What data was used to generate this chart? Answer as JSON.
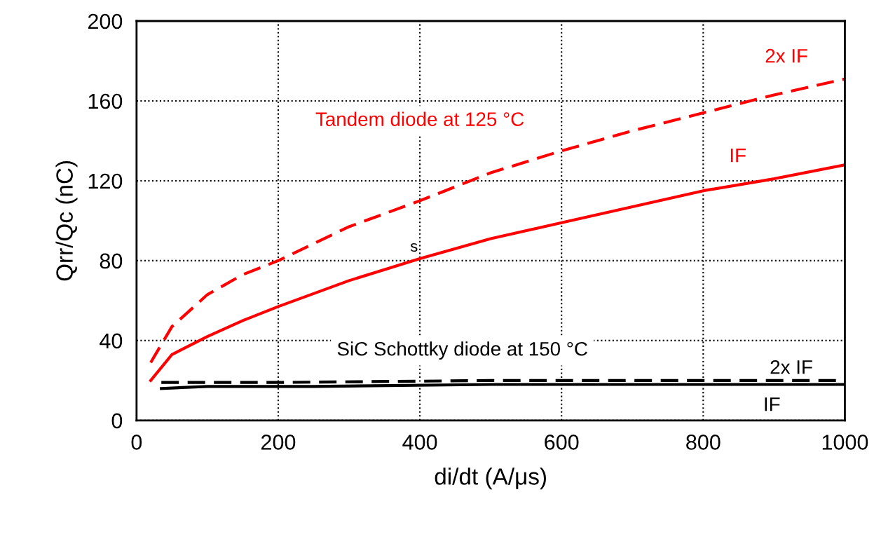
{
  "chart_data": {
    "type": "line",
    "xlabel": "di/dt (A/μs)",
    "ylabel": "Qrr/Qc (nC)",
    "xlim": [
      0,
      1000
    ],
    "xticks": [
      0,
      200,
      400,
      600,
      800,
      1000
    ],
    "ylim": [
      0,
      200
    ],
    "yticks": [
      0,
      40,
      80,
      120,
      160,
      200
    ],
    "grid": true,
    "series": [
      {
        "name": "2x IF",
        "color": "#ff0000",
        "line_style": "dashed",
        "x": [
          20,
          50,
          100,
          150,
          200,
          300,
          400,
          500,
          600,
          700,
          800,
          900,
          1000
        ],
        "values": [
          29,
          47,
          63,
          73,
          80,
          97,
          110,
          124,
          135,
          145,
          154,
          163,
          171
        ]
      },
      {
        "name": "IF",
        "color": "#ff0000",
        "line_style": "solid",
        "x": [
          20,
          50,
          100,
          150,
          200,
          300,
          400,
          500,
          600,
          700,
          800,
          900,
          1000
        ],
        "values": [
          20,
          33,
          42,
          50,
          57,
          70,
          81,
          91,
          99,
          107,
          115,
          121,
          128
        ]
      },
      {
        "name": "2x IF",
        "color": "#000000",
        "line_style": "dashed",
        "x": [
          35,
          200,
          500,
          1000
        ],
        "values": [
          19,
          19,
          20,
          20
        ]
      },
      {
        "name": "IF",
        "color": "#000000",
        "line_style": "solid",
        "x": [
          35,
          100,
          250,
          500,
          1000
        ],
        "values": [
          16,
          17,
          17,
          18,
          18
        ]
      }
    ],
    "annotations": [
      "Tandem diode at 125 °C",
      "SiC Schottky diode at 150 °C",
      {
        "text": "s",
        "x": 400,
        "y": 81
      }
    ]
  }
}
